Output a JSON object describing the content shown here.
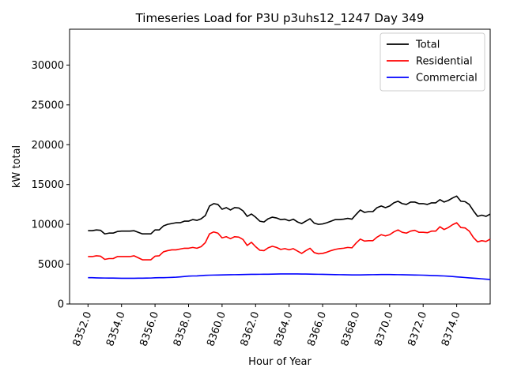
{
  "chart_data": {
    "type": "line",
    "title": "Timeseries Load for P3U p3uhs12_1247  Day 349",
    "xlabel": "Hour of Year",
    "ylabel": "kW total",
    "xlim": [
      8350.9,
      8376.0
    ],
    "ylim": [
      0,
      34500
    ],
    "x_ticks": [
      8352,
      8354,
      8356,
      8358,
      8360,
      8362,
      8364,
      8366,
      8368,
      8370,
      8372,
      8374
    ],
    "x_tick_labels": [
      "8352.0",
      "8354.0",
      "8356.0",
      "8358.0",
      "8360.0",
      "8362.0",
      "8364.0",
      "8366.0",
      "8368.0",
      "8370.0",
      "8372.0",
      "8374.0"
    ],
    "y_ticks": [
      0,
      5000,
      10000,
      15000,
      20000,
      25000,
      30000
    ],
    "y_tick_labels": [
      "0",
      "5000",
      "10000",
      "15000",
      "20000",
      "25000",
      "30000"
    ],
    "legend_position": "top-right",
    "x_start": 8352.0,
    "x_step": 0.25,
    "series": [
      {
        "name": "Total",
        "color": "#000000",
        "values": [
          9200,
          9200,
          9300,
          9250,
          8800,
          8900,
          8900,
          9100,
          9150,
          9150,
          9150,
          9200,
          9000,
          8800,
          8800,
          8800,
          9300,
          9300,
          9800,
          10000,
          10100,
          10200,
          10200,
          10400,
          10400,
          10600,
          10500,
          10700,
          11100,
          12300,
          12600,
          12500,
          11900,
          12100,
          11800,
          12100,
          12050,
          11700,
          11000,
          11300,
          10900,
          10400,
          10300,
          10700,
          10900,
          10800,
          10600,
          10650,
          10450,
          10650,
          10300,
          10100,
          10400,
          10700,
          10150,
          10000,
          10050,
          10200,
          10400,
          10600,
          10600,
          10650,
          10750,
          10650,
          11250,
          11800,
          11500,
          11600,
          11600,
          12100,
          12300,
          12100,
          12300,
          12700,
          12900,
          12600,
          12500,
          12800,
          12800,
          12600,
          12600,
          12500,
          12700,
          12700,
          13100,
          12800,
          13000,
          13300,
          13550,
          12900,
          12850,
          12500,
          11700,
          11000,
          11150,
          11000,
          11300
        ]
      },
      {
        "name": "Residential",
        "color": "#ff0000",
        "values": [
          5950,
          5950,
          6050,
          6000,
          5600,
          5700,
          5700,
          5950,
          5950,
          5950,
          5950,
          6050,
          5800,
          5550,
          5550,
          5550,
          6000,
          6050,
          6550,
          6700,
          6800,
          6800,
          6900,
          7000,
          7000,
          7100,
          7000,
          7200,
          7700,
          8800,
          9050,
          8900,
          8300,
          8450,
          8200,
          8450,
          8400,
          8100,
          7350,
          7750,
          7200,
          6750,
          6700,
          7050,
          7250,
          7100,
          6850,
          6950,
          6800,
          6950,
          6650,
          6350,
          6700,
          7000,
          6450,
          6300,
          6350,
          6500,
          6700,
          6850,
          6950,
          7000,
          7100,
          7050,
          7650,
          8150,
          7900,
          7950,
          7950,
          8400,
          8700,
          8550,
          8700,
          9050,
          9300,
          9000,
          8900,
          9150,
          9250,
          9000,
          9000,
          8950,
          9150,
          9150,
          9700,
          9350,
          9600,
          9950,
          10200,
          9600,
          9550,
          9150,
          8350,
          7800,
          7950,
          7850,
          8150
        ]
      },
      {
        "name": "Commercial",
        "color": "#0000ff",
        "values": [
          3300,
          3300,
          3280,
          3270,
          3260,
          3250,
          3250,
          3240,
          3230,
          3230,
          3230,
          3230,
          3240,
          3240,
          3250,
          3260,
          3290,
          3300,
          3300,
          3320,
          3340,
          3360,
          3400,
          3450,
          3500,
          3520,
          3530,
          3560,
          3600,
          3620,
          3630,
          3640,
          3650,
          3660,
          3670,
          3680,
          3690,
          3700,
          3710,
          3720,
          3720,
          3730,
          3740,
          3740,
          3750,
          3760,
          3770,
          3770,
          3770,
          3770,
          3770,
          3760,
          3760,
          3750,
          3740,
          3730,
          3720,
          3710,
          3700,
          3690,
          3680,
          3670,
          3660,
          3650,
          3650,
          3650,
          3660,
          3670,
          3680,
          3690,
          3700,
          3700,
          3700,
          3690,
          3680,
          3670,
          3660,
          3650,
          3640,
          3630,
          3620,
          3600,
          3580,
          3560,
          3540,
          3520,
          3490,
          3450,
          3400,
          3360,
          3320,
          3280,
          3240,
          3200,
          3160,
          3120,
          3080
        ]
      }
    ]
  }
}
